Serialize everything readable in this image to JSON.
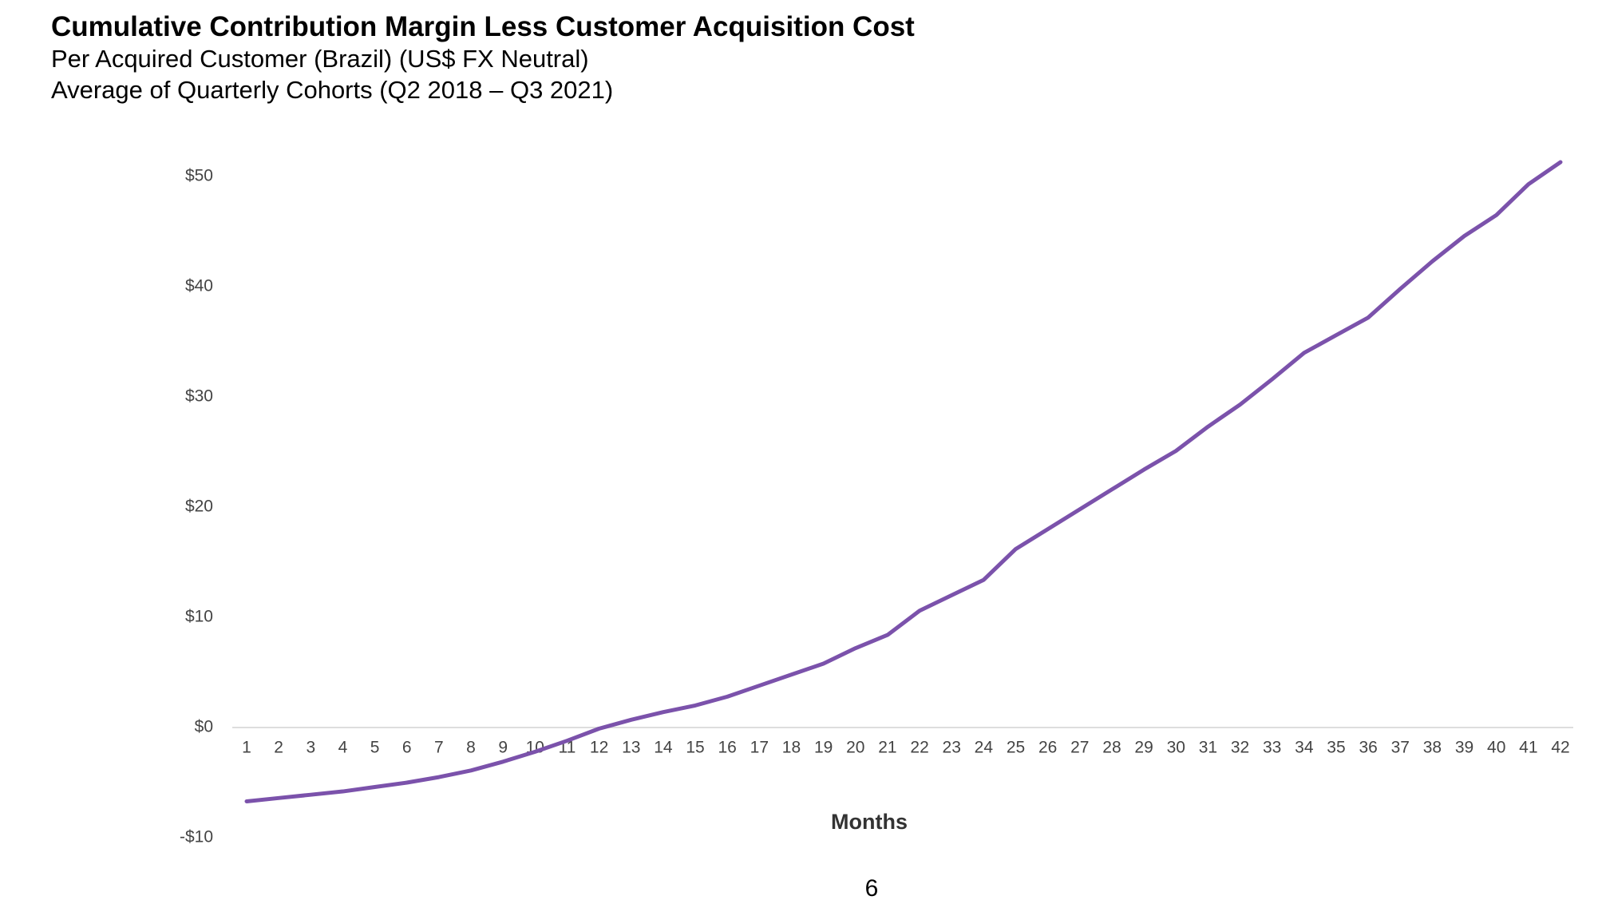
{
  "chart_data": {
    "type": "line",
    "title": "Cumulative Contribution Margin Less Customer Acquisition Cost",
    "subtitle": [
      "Per Acquired Customer (Brazil) (US$ FX Neutral)",
      "Average of Quarterly Cohorts (Q2 2018 – Q3 2021)"
    ],
    "x_label": "Months",
    "x": [
      1,
      2,
      3,
      4,
      5,
      6,
      7,
      8,
      9,
      10,
      11,
      12,
      13,
      14,
      15,
      16,
      17,
      18,
      19,
      20,
      21,
      22,
      23,
      24,
      25,
      26,
      27,
      28,
      29,
      30,
      31,
      32,
      33,
      34,
      35,
      36,
      37,
      38,
      39,
      40,
      41,
      42
    ],
    "xlim": [
      1,
      42
    ],
    "series": [
      {
        "name": "Cumulative Contribution Margin Less CAC",
        "color": "#7b52ab",
        "values": [
          -6.7,
          -6.4,
          -6.1,
          -5.8,
          -5.4,
          -5.0,
          -4.5,
          -3.9,
          -3.1,
          -2.2,
          -1.2,
          -0.1,
          0.7,
          1.4,
          2.0,
          2.8,
          3.8,
          4.8,
          5.8,
          7.2,
          8.4,
          10.6,
          12.0,
          13.4,
          16.2,
          18.0,
          19.8,
          21.6,
          23.4,
          25.1,
          27.3,
          29.3,
          31.6,
          34.0,
          35.6,
          37.2,
          39.8,
          42.3,
          44.6,
          46.5,
          49.3,
          51.3
        ]
      }
    ],
    "ylim": [
      -10,
      50
    ],
    "yticks": [
      {
        "value": -10,
        "label": "-$10"
      },
      {
        "value": 0,
        "label": "$0"
      },
      {
        "value": 10,
        "label": "$10"
      },
      {
        "value": 20,
        "label": "$20"
      },
      {
        "value": 30,
        "label": "$30"
      },
      {
        "value": 40,
        "label": "$40"
      },
      {
        "value": 50,
        "label": "$50"
      }
    ],
    "grid": false
  },
  "page_number": "6"
}
